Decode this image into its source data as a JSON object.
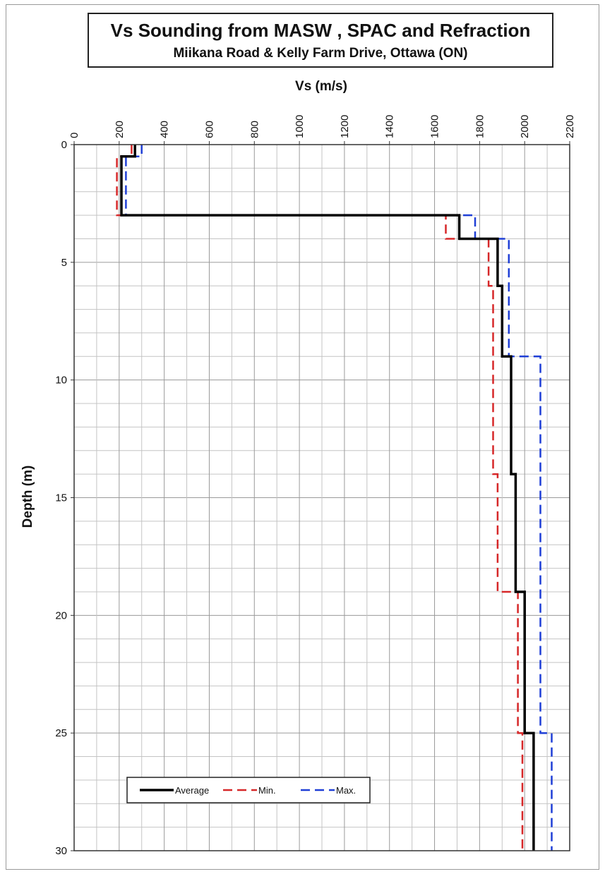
{
  "chart_data": {
    "type": "line",
    "title": "Vs Sounding from MASW , SPAC and Refraction",
    "subtitle": "Miikana Road & Kelly Farm Drive, Ottawa (ON)",
    "xlabel": "Vs (m/s)",
    "ylabel": "Depth (m)",
    "xlim": [
      0,
      2200
    ],
    "ylim": [
      0,
      30
    ],
    "x_ticks": [
      0,
      200,
      400,
      600,
      800,
      1000,
      1200,
      1400,
      1600,
      1800,
      2000,
      2200
    ],
    "y_ticks": [
      0,
      5,
      10,
      15,
      20,
      25,
      30
    ],
    "y_axis_inverted": true,
    "x_axis_position": "top",
    "grid": true,
    "legend_position": "bottom-left",
    "series": [
      {
        "name": "Average",
        "style": "solid",
        "color": "#000000",
        "points": [
          [
            270,
            0
          ],
          [
            270,
            0.5
          ],
          [
            210,
            0.5
          ],
          [
            210,
            3
          ],
          [
            1710,
            3
          ],
          [
            1710,
            4
          ],
          [
            1880,
            4
          ],
          [
            1880,
            6
          ],
          [
            1900,
            6
          ],
          [
            1900,
            9
          ],
          [
            1940,
            9
          ],
          [
            1940,
            14
          ],
          [
            1960,
            14
          ],
          [
            1960,
            19
          ],
          [
            2000,
            19
          ],
          [
            2000,
            25
          ],
          [
            2040,
            25
          ],
          [
            2040,
            30
          ]
        ]
      },
      {
        "name": "Min.",
        "style": "dashed",
        "color": "#d62728",
        "points": [
          [
            255,
            0
          ],
          [
            255,
            0.5
          ],
          [
            190,
            0.5
          ],
          [
            190,
            3
          ],
          [
            1650,
            3
          ],
          [
            1650,
            4
          ],
          [
            1840,
            4
          ],
          [
            1840,
            6
          ],
          [
            1860,
            6
          ],
          [
            1860,
            14
          ],
          [
            1880,
            14
          ],
          [
            1880,
            19
          ],
          [
            1970,
            19
          ],
          [
            1970,
            25
          ],
          [
            1990,
            25
          ],
          [
            1990,
            30
          ]
        ]
      },
      {
        "name": "Max.",
        "style": "dashed",
        "color": "#1f3fd6",
        "points": [
          [
            300,
            0
          ],
          [
            300,
            0.5
          ],
          [
            230,
            0.5
          ],
          [
            230,
            3
          ],
          [
            1780,
            3
          ],
          [
            1780,
            4
          ],
          [
            1930,
            4
          ],
          [
            1930,
            9
          ],
          [
            2070,
            9
          ],
          [
            2070,
            25
          ],
          [
            2120,
            25
          ],
          [
            2120,
            30
          ]
        ]
      }
    ]
  }
}
